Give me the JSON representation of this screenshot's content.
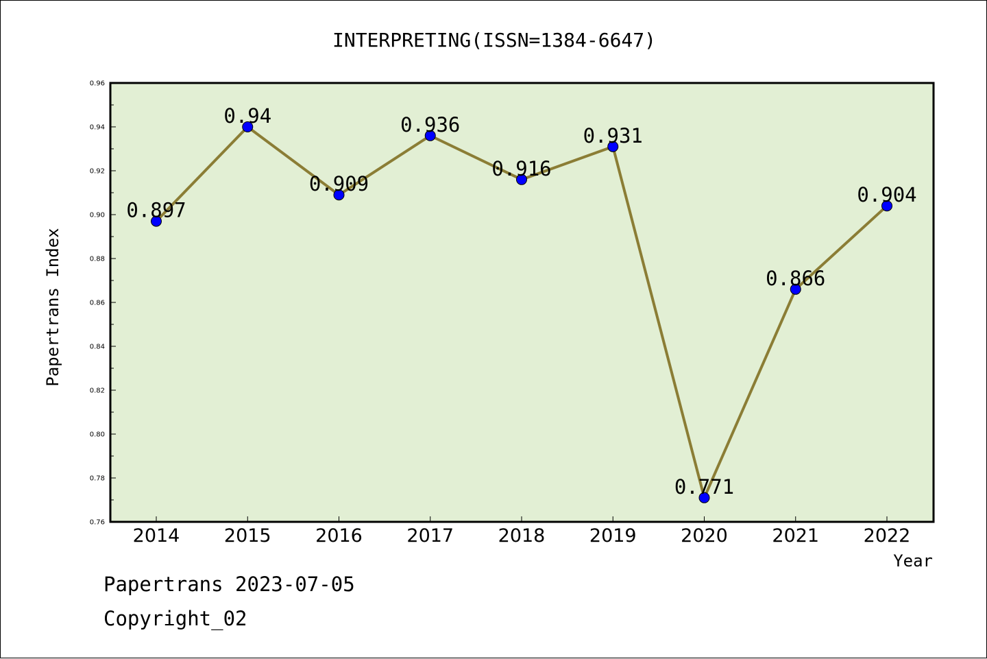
{
  "chart_data": {
    "type": "line",
    "title": "INTERPRETING(ISSN=1384-6647)",
    "xlabel": "Year",
    "ylabel": "Papertrans Index",
    "categories": [
      "2014",
      "2015",
      "2016",
      "2017",
      "2018",
      "2019",
      "2020",
      "2021",
      "2022"
    ],
    "series": [
      {
        "values": [
          0.897,
          0.94,
          0.909,
          0.936,
          0.916,
          0.931,
          0.771,
          0.866,
          0.904
        ],
        "labels": [
          "0.897",
          "0.94",
          "0.909",
          "0.936",
          "0.916",
          "0.931",
          "0.771",
          "0.866",
          "0.904"
        ]
      }
    ],
    "ylim": [
      0.76,
      0.96
    ],
    "yticks": [
      "0.76",
      "0.78",
      "0.80",
      "0.82",
      "0.84",
      "0.86",
      "0.88",
      "0.90",
      "0.92",
      "0.94",
      "0.96"
    ],
    "grid": false,
    "colors": {
      "plot_background": "#e2efd4",
      "line": "#8b7d35",
      "marker": "#0000ff"
    }
  },
  "footer": {
    "line1": "Papertrans 2023-07-05",
    "line2": "Copyright_02"
  }
}
